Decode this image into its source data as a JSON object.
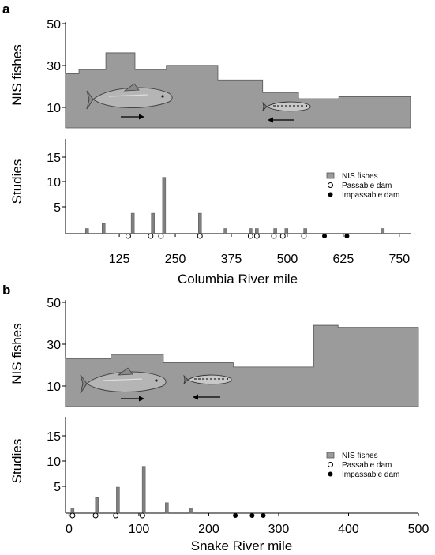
{
  "chart_data": [
    {
      "panel_label": "a",
      "type": "composite",
      "area_chart": {
        "type": "area",
        "ylabel": "NIS fishes",
        "yticks": [
          10,
          30,
          50
        ],
        "ylim": [
          0,
          50
        ],
        "xlim": [
          5,
          775
        ],
        "steps": [
          {
            "x0": 5,
            "x1": 35,
            "y": 26
          },
          {
            "x0": 35,
            "x1": 95,
            "y": 28
          },
          {
            "x0": 95,
            "x1": 160,
            "y": 36
          },
          {
            "x0": 160,
            "x1": 230,
            "y": 28
          },
          {
            "x0": 230,
            "x1": 345,
            "y": 30
          },
          {
            "x0": 345,
            "x1": 445,
            "y": 23
          },
          {
            "x0": 445,
            "x1": 525,
            "y": 17
          },
          {
            "x0": 525,
            "x1": 615,
            "y": 14
          },
          {
            "x0": 615,
            "x1": 775,
            "y": 15
          }
        ]
      },
      "bar_chart": {
        "type": "bar",
        "ylabel": "Studies",
        "yticks": [
          5,
          10,
          15
        ],
        "ylim": [
          0,
          18.5
        ],
        "xlabel": "Columbia River mile",
        "xticks": [
          125,
          250,
          375,
          500,
          625,
          750
        ],
        "xlim": [
          5,
          775
        ],
        "bars": [
          {
            "x": 53,
            "value": 1
          },
          {
            "x": 90,
            "value": 2
          },
          {
            "x": 155,
            "value": 4
          },
          {
            "x": 200,
            "value": 4
          },
          {
            "x": 225,
            "value": 11
          },
          {
            "x": 305,
            "value": 4
          },
          {
            "x": 362,
            "value": 1
          },
          {
            "x": 418,
            "value": 1
          },
          {
            "x": 432,
            "value": 1
          },
          {
            "x": 473,
            "value": 1
          },
          {
            "x": 498,
            "value": 1
          },
          {
            "x": 540,
            "value": 1
          },
          {
            "x": 713,
            "value": 1
          }
        ],
        "passable_dams": [
          145,
          195,
          218,
          305,
          418,
          432,
          470,
          490,
          537
        ],
        "impassable_dams": [
          583,
          633
        ],
        "legend": {
          "position": "right",
          "nis": "NIS fishes",
          "passable": "Passable dam",
          "impassable": "Impassable dam"
        }
      }
    },
    {
      "panel_label": "b",
      "type": "composite",
      "area_chart": {
        "type": "area",
        "ylabel": "NIS fishes",
        "yticks": [
          10,
          30,
          50
        ],
        "ylim": [
          0,
          50
        ],
        "xlim": [
          -5,
          500
        ],
        "steps": [
          {
            "x0": -5,
            "x1": 40,
            "y": 23
          },
          {
            "x0": 40,
            "x1": 60,
            "y": 23
          },
          {
            "x0": 60,
            "x1": 135,
            "y": 25
          },
          {
            "x0": 135,
            "x1": 235,
            "y": 21
          },
          {
            "x0": 235,
            "x1": 350,
            "y": 19
          },
          {
            "x0": 350,
            "x1": 385,
            "y": 39
          },
          {
            "x0": 385,
            "x1": 500,
            "y": 38
          }
        ]
      },
      "bar_chart": {
        "type": "bar",
        "ylabel": "Studies",
        "yticks": [
          5,
          10,
          15
        ],
        "ylim": [
          0,
          18.5
        ],
        "xlabel": "Snake River mile",
        "xticks": [
          0,
          100,
          200,
          300,
          400,
          500
        ],
        "xlim": [
          -5,
          500
        ],
        "bars": [
          {
            "x": 5,
            "value": 1
          },
          {
            "x": 40,
            "value": 3
          },
          {
            "x": 70,
            "value": 5
          },
          {
            "x": 107,
            "value": 9
          },
          {
            "x": 140,
            "value": 2
          },
          {
            "x": 175,
            "value": 1
          }
        ],
        "passable_dams": [
          5,
          38,
          67,
          105
        ],
        "impassable_dams": [
          238,
          262,
          278
        ],
        "legend": {
          "position": "right",
          "nis": "NIS fishes",
          "passable": "Passable dam",
          "impassable": "Impassable dam"
        }
      }
    }
  ]
}
